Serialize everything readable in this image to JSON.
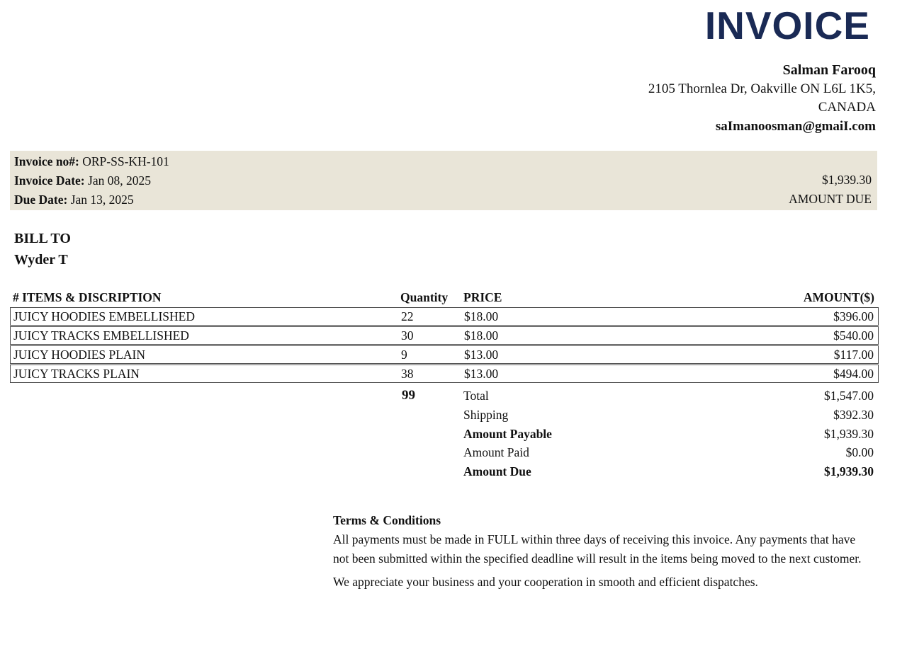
{
  "header": {
    "title": "INVOICE",
    "seller_name": "Salman Farooq",
    "address_line1": "2105 Thornlea Dr, Oakville ON L6L 1K5,",
    "address_line2": "CANADA",
    "email": "saImanoosman@gmaiI.com"
  },
  "meta": {
    "invoice_no_label": "Invoice no#:",
    "invoice_no": " ORP-SS-KH-101",
    "invoice_date_label": "Invoice Date:",
    "invoice_date": " Jan 08, 2025",
    "due_date_label": "Due Date:",
    "due_date": " Jan 13, 2025",
    "amount_due_value": "$1,939.30",
    "amount_due_label": "AMOUNT DUE"
  },
  "bill_to": {
    "label": "BILL TO",
    "name": "Wyder T"
  },
  "items_table": {
    "headers": {
      "items": "# ITEMS & DISCRIPTION",
      "quantity": "Quantity",
      "price": "PRICE",
      "amount": "AMOUNT($)"
    },
    "rows": [
      {
        "description": "JUICY HOODIES EMBELLISHED",
        "quantity": "22",
        "price": "$18.00",
        "amount": "$396.00"
      },
      {
        "description": "JUICY TRACKS EMBELLISHED",
        "quantity": "30",
        "price": "$18.00",
        "amount": "$540.00"
      },
      {
        "description": "JUICY HOODIES PLAIN",
        "quantity": "9",
        "price": "$13.00",
        "amount": "$117.00"
      },
      {
        "description": "JUICY TRACKS PLAIN",
        "quantity": "38",
        "price": "$13.00",
        "amount": "$494.00"
      }
    ],
    "total_quantity": "99"
  },
  "totals": [
    {
      "quantity": "99",
      "label": "Total",
      "value": "$1,547.00",
      "label_bold": false,
      "value_bold": false
    },
    {
      "quantity": "",
      "label": "Shipping",
      "value": "$392.30",
      "label_bold": false,
      "value_bold": false
    },
    {
      "quantity": "",
      "label": "Amount Payable",
      "value": "$1,939.30",
      "label_bold": true,
      "value_bold": false
    },
    {
      "quantity": "",
      "label": "Amount Paid",
      "value": "$0.00",
      "label_bold": false,
      "value_bold": false
    },
    {
      "quantity": "",
      "label": "Amount Due",
      "value": "$1,939.30",
      "label_bold": true,
      "value_bold": true
    }
  ],
  "terms": {
    "heading": "Terms & Conditions",
    "paragraph1": "All payments must be made in FULL within three days of receiving this invoice. Any payments that have not been submitted within the specified deadline will result in the items being moved to the next customer.",
    "paragraph2": "We appreciate your business and your cooperation in smooth and efficient dispatches."
  },
  "colors": {
    "title_navy": "#1a2a55",
    "meta_background": "#e9e5d8",
    "table_border": "#4a4a4a"
  }
}
